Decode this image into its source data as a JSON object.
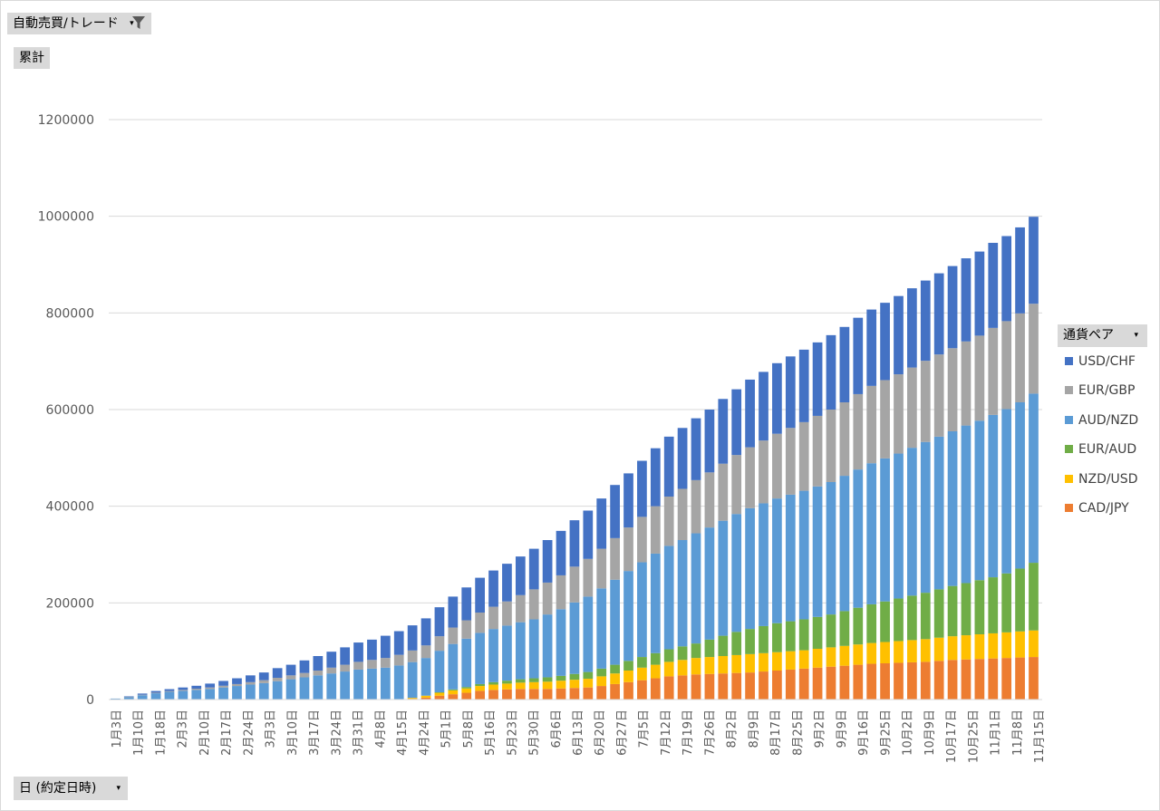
{
  "controls": {
    "filter_label": "自動売買/トレード",
    "values_label": "累計",
    "axis_label": "日 (約定日時)",
    "legend_title": "通貨ペア",
    "funnel_icon": "filter-funnel-icon",
    "dropdown_icon": "dropdown-arrow-icon"
  },
  "chart_data": {
    "type": "bar",
    "stacked": true,
    "title": "",
    "xlabel": "",
    "ylabel": "",
    "ylim": [
      0,
      1200000
    ],
    "y_ticks": [
      "0",
      "200000",
      "400000",
      "600000",
      "800000",
      "1000000",
      "1200000"
    ],
    "x_tick_labels": [
      "1月3日",
      "1月10日",
      "1月18日",
      "2月3日",
      "2月10日",
      "2月17日",
      "2月24日",
      "3月3日",
      "3月10日",
      "3月17日",
      "3月24日",
      "3月31日",
      "4月8日",
      "4月15日",
      "4月24日",
      "5月1日",
      "5月8日",
      "5月16日",
      "5月23日",
      "5月30日",
      "6月6日",
      "6月13日",
      "6月20日",
      "6月27日",
      "7月5日",
      "7月12日",
      "7月19日",
      "7月26日",
      "8月2日",
      "8月9日",
      "8月17日",
      "8月25日",
      "9月2日",
      "9月9日",
      "9月16日",
      "9月25日",
      "10月2日",
      "10月9日",
      "10月17日",
      "10月25日",
      "11月1日",
      "11月8日",
      "11月15日"
    ],
    "legend_position": "right",
    "grid": true,
    "series_order_bottom_to_top": [
      "CAD/JPY",
      "NZD/USD",
      "EUR/AUD",
      "AUD/NZD",
      "EUR/GBP",
      "USD/CHF"
    ],
    "series": [
      {
        "name": "USD/CHF",
        "color": "#4472c4",
        "values": [
          0,
          1200,
          2500,
          3500,
          4000,
          5000,
          6000,
          8000,
          10000,
          12000,
          14000,
          16000,
          20000,
          22000,
          26000,
          30000,
          33000,
          36000,
          40000,
          42000,
          46000,
          49000,
          52000,
          56000,
          60000,
          64000,
          68000,
          72000,
          75000,
          78000,
          80000,
          84000,
          88000,
          92000,
          96000,
          100000,
          104000,
          110000,
          112000,
          116000,
          120000,
          124000,
          126000,
          128000,
          130000,
          134000,
          136000,
          140000,
          142000,
          146000,
          148000,
          150000,
          152000,
          154000,
          156000,
          158000,
          158000,
          160000,
          162000,
          164000,
          166000,
          168000,
          170000,
          172000,
          174000,
          176000,
          176000,
          178000,
          180000
        ]
      },
      {
        "name": "EUR/GBP",
        "color": "#a5a5a5",
        "values": [
          0,
          400,
          900,
          1200,
          1500,
          2000,
          2500,
          3000,
          3500,
          4000,
          5000,
          6000,
          7000,
          8000,
          9000,
          10000,
          12000,
          14000,
          16000,
          18000,
          20000,
          22000,
          24000,
          26000,
          30000,
          34000,
          38000,
          42000,
          46000,
          50000,
          56000,
          62000,
          66000,
          70000,
          74000,
          78000,
          82000,
          86000,
          90000,
          94000,
          98000,
          102000,
          106000,
          110000,
          114000,
          118000,
          122000,
          126000,
          130000,
          134000,
          138000,
          142000,
          146000,
          150000,
          152000,
          156000,
          160000,
          162000,
          164000,
          166000,
          168000,
          170000,
          172000,
          174000,
          176000,
          180000,
          182000,
          184000,
          186000
        ]
      },
      {
        "name": "AUD/NZD",
        "color": "#5b9bd5",
        "values": [
          2000,
          5000,
          9000,
          13000,
          16000,
          18000,
          20000,
          22000,
          25000,
          28000,
          31000,
          34000,
          38000,
          42000,
          46000,
          50000,
          54000,
          58000,
          62000,
          64000,
          66000,
          70000,
          74000,
          78000,
          86000,
          94000,
          100000,
          106000,
          110000,
          114000,
          118000,
          122000,
          130000,
          138000,
          148000,
          156000,
          166000,
          176000,
          186000,
          196000,
          206000,
          214000,
          220000,
          228000,
          232000,
          238000,
          244000,
          250000,
          254000,
          258000,
          262000,
          266000,
          270000,
          274000,
          280000,
          286000,
          292000,
          296000,
          300000,
          306000,
          312000,
          316000,
          320000,
          326000,
          330000,
          336000,
          340000,
          344000,
          350000
        ]
      },
      {
        "name": "EUR/AUD",
        "color": "#70ad47",
        "values": [
          0,
          0,
          0,
          0,
          0,
          0,
          0,
          0,
          0,
          0,
          0,
          0,
          0,
          0,
          0,
          0,
          0,
          0,
          0,
          0,
          0,
          0,
          0,
          0,
          1000,
          2000,
          3000,
          4000,
          5000,
          6000,
          7000,
          8000,
          9000,
          10000,
          12000,
          14000,
          16000,
          18000,
          20000,
          22000,
          24000,
          26000,
          28000,
          30000,
          36000,
          42000,
          48000,
          52000,
          56000,
          60000,
          62000,
          64000,
          66000,
          68000,
          72000,
          76000,
          80000,
          84000,
          88000,
          92000,
          96000,
          100000,
          104000,
          108000,
          112000,
          116000,
          122000,
          130000,
          140000
        ]
      },
      {
        "name": "NZD/USD",
        "color": "#ffc000",
        "values": [
          0,
          0,
          0,
          0,
          0,
          0,
          0,
          0,
          0,
          0,
          0,
          0,
          0,
          0,
          0,
          0,
          0,
          0,
          0,
          0,
          0,
          0,
          2000,
          4000,
          6000,
          8000,
          9000,
          10000,
          11000,
          12000,
          13000,
          14000,
          15000,
          16000,
          17000,
          18000,
          20000,
          22000,
          24000,
          26000,
          28000,
          30000,
          32000,
          34000,
          35000,
          36000,
          37000,
          38000,
          38000,
          38000,
          38000,
          38000,
          39000,
          40000,
          41000,
          42000,
          43000,
          44000,
          45000,
          46000,
          47000,
          48000,
          49000,
          50000,
          51000,
          52000,
          53000,
          54000,
          55000
        ]
      },
      {
        "name": "CAD/JPY",
        "color": "#ed7d31",
        "values": [
          0,
          0,
          0,
          0,
          0,
          0,
          0,
          0,
          0,
          0,
          0,
          0,
          0,
          0,
          0,
          0,
          0,
          0,
          0,
          0,
          0,
          500,
          1500,
          4000,
          8000,
          11000,
          14000,
          18000,
          20000,
          21000,
          22000,
          22000,
          22000,
          23000,
          24000,
          25000,
          28000,
          32000,
          36000,
          40000,
          44000,
          48000,
          50000,
          52000,
          53000,
          54000,
          55000,
          56000,
          58000,
          60000,
          62000,
          64000,
          66000,
          68000,
          70000,
          72000,
          74000,
          75000,
          76000,
          77000,
          78000,
          80000,
          82000,
          83000,
          84000,
          85000,
          86000,
          87000,
          88000
        ]
      }
    ]
  }
}
